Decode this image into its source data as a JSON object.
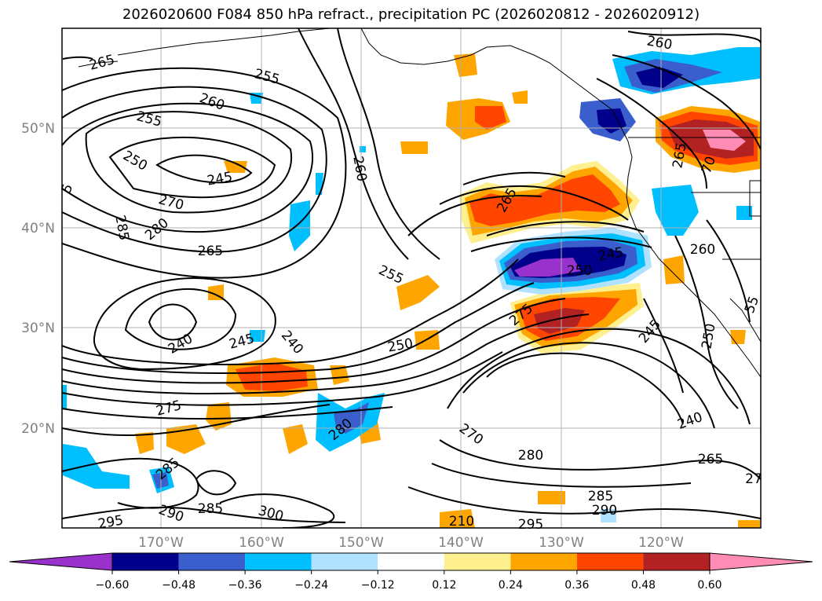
{
  "title": "2026020600 F084 850 hPa refract., precipitation PC (2026020812 - 2026020912)",
  "lat_labels": [
    "50°N",
    "40°N",
    "30°N",
    "20°N"
  ],
  "lon_labels": [
    "170°W",
    "160°W",
    "150°W",
    "140°W",
    "130°W",
    "120°W"
  ],
  "colorbar": {
    "colors": [
      "#9932cc",
      "#00008b",
      "#3a5fcd",
      "#00bfff",
      "#b0e2ff",
      "#ffffff",
      "#fff08f",
      "#ffa500",
      "#ff4500",
      "#b22222",
      "#ff8cb4"
    ],
    "tick_labels": [
      "−0.60",
      "−0.48",
      "−0.36",
      "−0.24",
      "−0.12",
      "0.12",
      "0.24",
      "0.36",
      "0.48",
      "0.60"
    ]
  },
  "contour_labels": [
    "265",
    "255",
    "260",
    "255",
    "250",
    "245",
    "270",
    "285",
    "280",
    "265",
    "260",
    "5",
    "240",
    "245",
    "240",
    "255",
    "250",
    "275",
    "285",
    "290",
    "285",
    "300",
    "295",
    "280",
    "270",
    "280",
    "295",
    "210",
    "265",
    "250",
    "245",
    "275",
    "245",
    "240",
    "265",
    "285",
    "290",
    "27",
    "260",
    "265",
    "70",
    "260",
    "250",
    "55"
  ]
}
